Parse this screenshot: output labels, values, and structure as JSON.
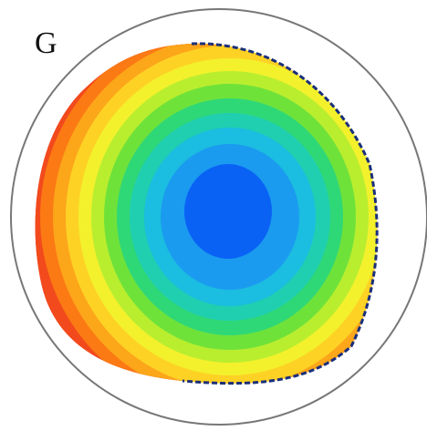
{
  "label": "G"
}
